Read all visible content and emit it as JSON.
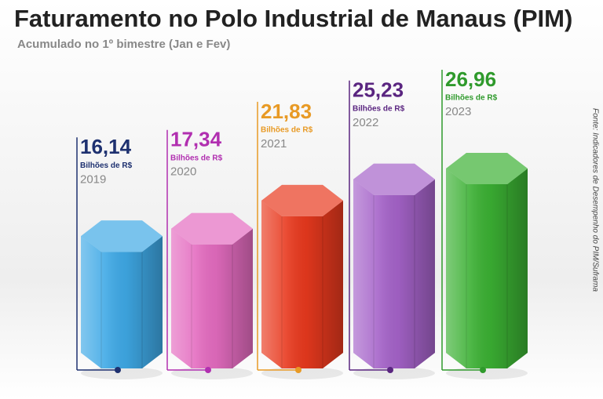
{
  "chart_data": {
    "type": "bar",
    "title": "Faturamento no Polo Industrial de Manaus (PIM)",
    "subtitle": "Acumulado no 1º bimestre (Jan e Fev)",
    "unit_label": "Bilhões de R$",
    "source": "Fonte: Indicadores de Desempenho do PIM/Suframa",
    "categories": [
      "2019",
      "2020",
      "2021",
      "2022",
      "2023"
    ],
    "values": [
      16.14,
      17.34,
      21.83,
      25.23,
      26.96
    ],
    "value_labels": [
      "16,14",
      "17,34",
      "21,83",
      "25,23",
      "26,96"
    ],
    "colors": [
      "#3fa9e6",
      "#e46cc0",
      "#e8391e",
      "#a563c9",
      "#3bb033"
    ],
    "label_colors": [
      "#1e3170",
      "#b12fb0",
      "#e89a25",
      "#5a2580",
      "#2f9a2c"
    ]
  }
}
